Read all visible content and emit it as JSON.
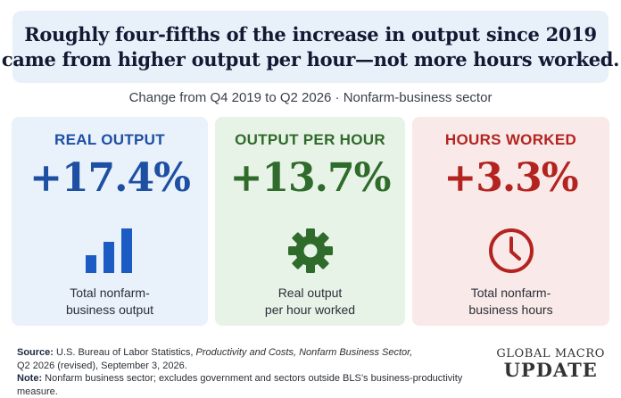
{
  "headline": {
    "line1": "Roughly four-fifths of the increase in output since 2019",
    "line2": "came from higher output per hour—not more hours worked."
  },
  "subtitle": "Change from Q4 2019 to Q2 2026 · Nonfarm-business sector",
  "cards": [
    {
      "title": "REAL OUTPUT",
      "value": "+17.4%",
      "icon": "bar-chart-icon",
      "desc_line1": "Total nonfarm-",
      "desc_line2": "business output",
      "color": "#1d4fa3"
    },
    {
      "title": "OUTPUT PER HOUR",
      "value": "+13.7%",
      "icon": "gear-icon",
      "desc_line1": "Real output",
      "desc_line2": "per hour worked",
      "color": "#2f6b2a"
    },
    {
      "title": "HOURS WORKED",
      "value": "+3.3%",
      "icon": "clock-icon",
      "desc_line1": "Total nonfarm-",
      "desc_line2": "business hours",
      "color": "#b32420"
    }
  ],
  "footer": {
    "source_label": "Source:",
    "source_text1": " U.S. Bureau of Labor Statistics, ",
    "source_italic": "Productivity and Costs, Nonfarm Business Sector,",
    "source_text2": "Q2 2026 (revised), September 3, 2026.",
    "note_label": "Note:",
    "note_text": " Nonfarm business sector; excludes government and sectors outside BLS’s business-productivity measure."
  },
  "brand": {
    "top": "GLOBAL MACRO",
    "bottom": "UPDATE"
  }
}
